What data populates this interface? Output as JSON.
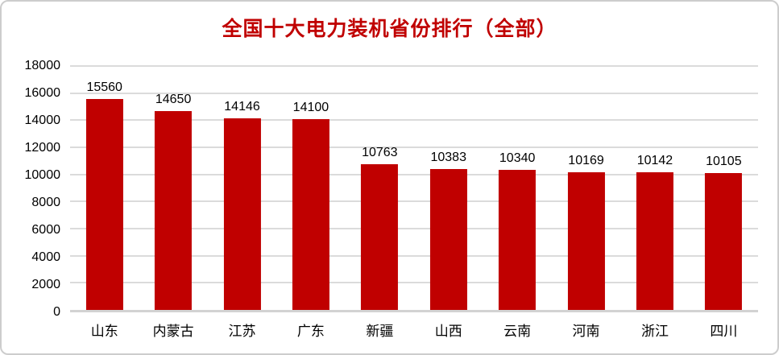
{
  "card": {
    "background": "#ffffff",
    "border_color": "#cdcdcd"
  },
  "chart_data": {
    "type": "bar",
    "title": "全国十大电力装机省份排行（全部）",
    "title_color": "#c00000",
    "bar_color": "#c00000",
    "data_label_color": "#000000",
    "axis_label_color": "#000000",
    "gridline_color": "#dbdbdb",
    "categories": [
      "山东",
      "内蒙古",
      "江苏",
      "广东",
      "新疆",
      "山西",
      "云南",
      "河南",
      "浙江",
      "四川"
    ],
    "values": [
      15560,
      14650,
      14146,
      14100,
      10763,
      10383,
      10340,
      10169,
      10142,
      10105
    ],
    "data_labels": [
      "15560",
      "14650",
      "14146",
      "14100",
      "10763",
      "10383",
      "10340",
      "10169",
      "10142",
      "10105"
    ],
    "y_ticks": [
      "18000",
      "16000",
      "14000",
      "12000",
      "10000",
      "8000",
      "6000",
      "4000",
      "2000",
      "0"
    ],
    "ylim": [
      0,
      18000
    ],
    "ytick_step": 2000,
    "grid": "horizontal",
    "legend": "none",
    "xlabel": "",
    "ylabel": ""
  }
}
